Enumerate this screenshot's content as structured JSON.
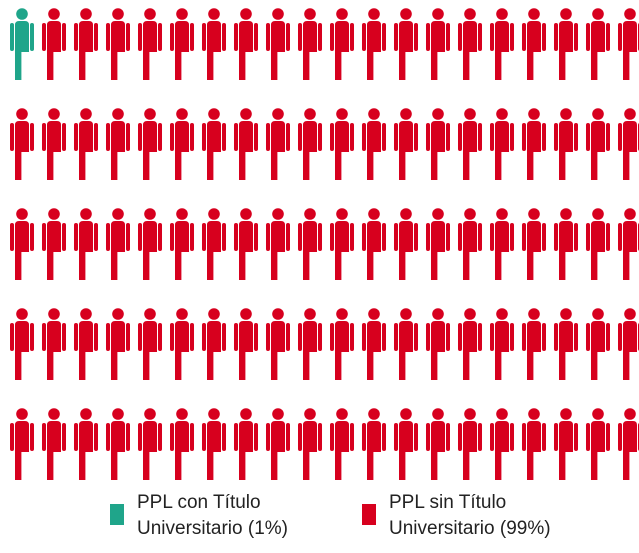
{
  "chart_data": {
    "type": "pictogram",
    "columns": 20,
    "series": [
      {
        "name": "PPL con Título Universitario (1%)",
        "color": "#1fa58a",
        "values": [
          1
        ]
      },
      {
        "name": "PPL sin Título Universitario (99%)",
        "color": "#d7001e",
        "values": [
          99
        ]
      }
    ]
  }
}
